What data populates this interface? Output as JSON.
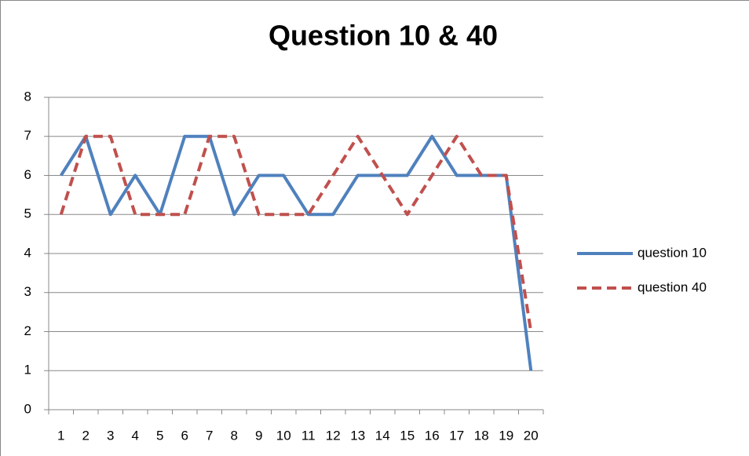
{
  "chart_data": {
    "type": "line",
    "title": "Question 10 & 40",
    "categories": [
      "1",
      "2",
      "3",
      "4",
      "5",
      "6",
      "7",
      "8",
      "9",
      "10",
      "11",
      "12",
      "13",
      "14",
      "15",
      "16",
      "17",
      "18",
      "19",
      "20"
    ],
    "series": [
      {
        "name": "question 10",
        "color": "#4f81bd",
        "dash": "solid",
        "values": [
          6,
          7,
          5,
          6,
          5,
          7,
          7,
          5,
          6,
          6,
          5,
          5,
          6,
          6,
          6,
          7,
          6,
          6,
          6,
          1
        ]
      },
      {
        "name": "question 40",
        "color": "#c0504d",
        "dash": "dashed",
        "values": [
          5,
          7,
          7,
          5,
          5,
          5,
          7,
          7,
          5,
          5,
          5,
          6,
          7,
          6,
          5,
          6,
          7,
          6,
          6,
          2
        ]
      }
    ],
    "ylim": [
      0,
      8
    ],
    "yticks": [
      0,
      1,
      2,
      3,
      4,
      5,
      6,
      7,
      8
    ],
    "grid": true,
    "legend": "right"
  }
}
